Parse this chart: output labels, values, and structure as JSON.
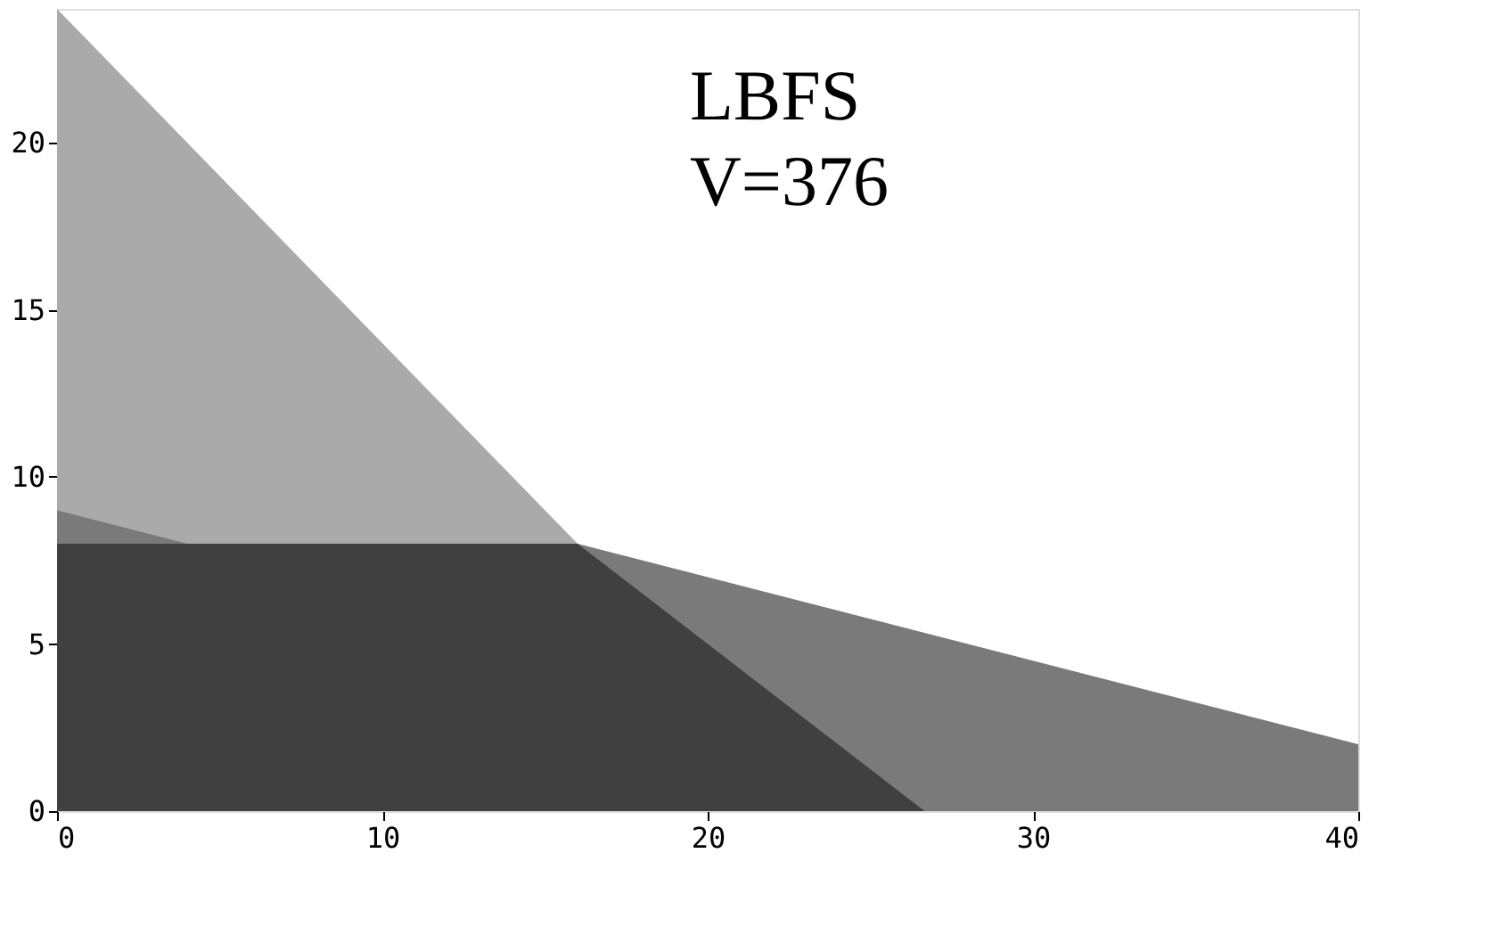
{
  "chart_data": {
    "type": "area",
    "annotations": [
      "LBFS",
      "V=376"
    ],
    "series": [
      {
        "color": "#aaaaaa",
        "x": [
          0,
          16,
          26.67
        ],
        "values": [
          24,
          8,
          0
        ]
      },
      {
        "color": "#7a7a7a",
        "x": [
          0,
          4,
          16,
          40
        ],
        "values": [
          9,
          8,
          8,
          2
        ]
      },
      {
        "color": "#404040",
        "x": [
          0,
          16,
          26.67
        ],
        "values": [
          8,
          8,
          0
        ]
      }
    ],
    "xlim": [
      0,
      40
    ],
    "ylim": [
      0,
      24
    ],
    "xticks": [
      0,
      10,
      20,
      30,
      40
    ],
    "yticks": [
      0,
      5,
      10,
      15,
      20
    ],
    "grid": false
  }
}
